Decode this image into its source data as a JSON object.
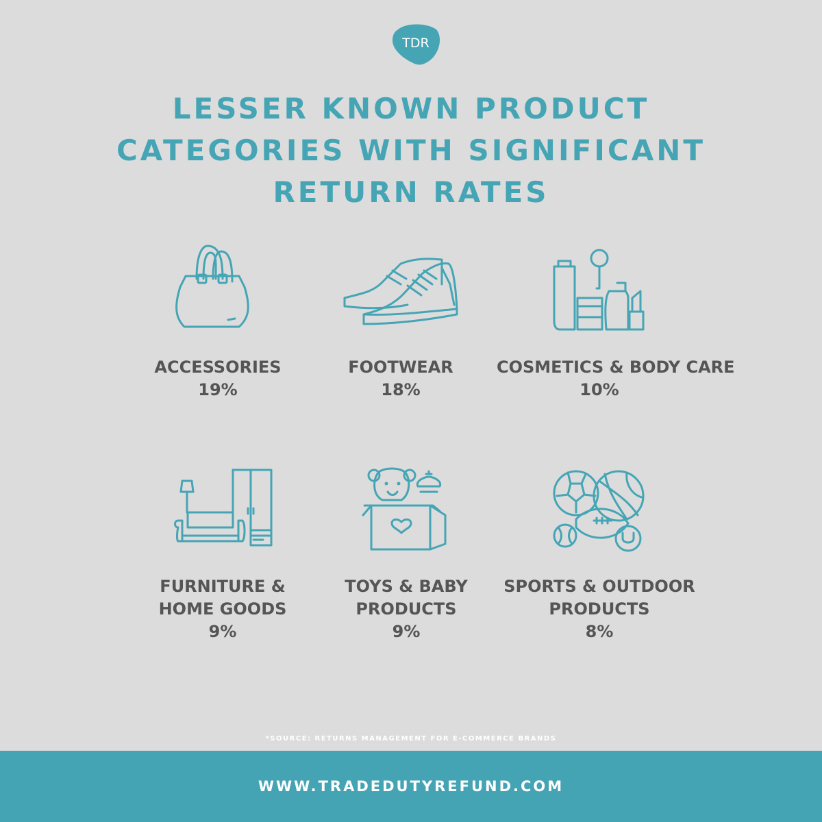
{
  "brand": {
    "logo_text": "TDR",
    "accent_color": "#45a5b5",
    "footer_color": "#45a4b4",
    "background_color": "#dcdcdc"
  },
  "title_lines": [
    "LESSER KNOWN PRODUCT",
    "CATEGORIES WITH SIGNIFICANT",
    "RETURN RATES"
  ],
  "categories": [
    {
      "icon": "handbag-icon",
      "label_lines": [
        "ACCESSORIES"
      ],
      "rate": "19%"
    },
    {
      "icon": "sneakers-icon",
      "label_lines": [
        "FOOTWEAR"
      ],
      "rate": "18%"
    },
    {
      "icon": "cosmetics-icon",
      "label_lines": [
        "COSMETICS & BODY CARE"
      ],
      "rate": "10%"
    },
    {
      "icon": "furniture-icon",
      "label_lines": [
        "FURNITURE &",
        "HOME GOODS"
      ],
      "rate": "9%"
    },
    {
      "icon": "toy-box-icon",
      "label_lines": [
        "TOYS & BABY",
        "PRODUCTS"
      ],
      "rate": "9%"
    },
    {
      "icon": "sports-balls-icon",
      "label_lines": [
        "SPORTS & OUTDOOR",
        "PRODUCTS"
      ],
      "rate": "8%"
    }
  ],
  "source": "*SOURCE: RETURNS MANAGEMENT FOR E-COMMERCE BRANDS",
  "footer": {
    "url_text": "WWW.TRADEDUTYREFUND.COM"
  }
}
